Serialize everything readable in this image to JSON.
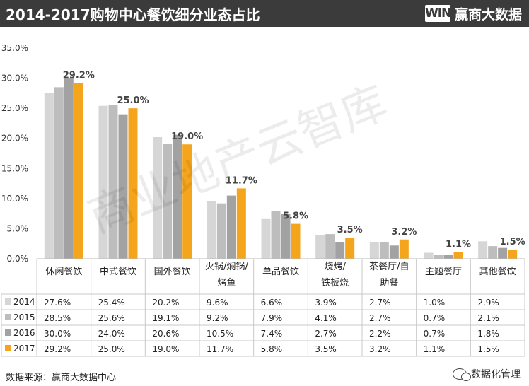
{
  "header": {
    "title": "2014-2017购物中心餐饮细分业态占比",
    "brand_logo": "WIN",
    "brand_name": "赢商大数据"
  },
  "watermark": "商业地产云智库",
  "source": "数据来源：赢商大数据中心",
  "wechat": {
    "icon": "wechat-icon",
    "account": "数据化管理"
  },
  "chart_data": {
    "type": "bar",
    "title": "2014-2017购物中心餐饮细分业态占比",
    "categories": [
      [
        "休闲餐饮"
      ],
      [
        "中式餐饮"
      ],
      [
        "国外餐饮"
      ],
      [
        "火锅/焖锅/",
        "烤鱼"
      ],
      [
        "单品餐饮"
      ],
      [
        "烧烤/",
        "铁板烧"
      ],
      [
        "茶餐厅/自",
        "助餐"
      ],
      [
        "主题餐厅"
      ],
      [
        "其他餐饮"
      ]
    ],
    "series": [
      {
        "name": "2014",
        "color": "#d6d6d6",
        "values": [
          27.6,
          25.4,
          20.2,
          9.6,
          6.6,
          3.9,
          2.7,
          1.0,
          2.9
        ],
        "labels": [
          "27.6%",
          "25.4%",
          "20.2%",
          "9.6%",
          "6.6%",
          "3.9%",
          "2.7%",
          "1.0%",
          "2.9%"
        ]
      },
      {
        "name": "2015",
        "color": "#bdbdbd",
        "values": [
          28.5,
          25.6,
          19.1,
          9.2,
          7.9,
          4.1,
          2.7,
          0.7,
          2.1
        ],
        "labels": [
          "28.5%",
          "25.6%",
          "19.1%",
          "9.2%",
          "7.9%",
          "4.1%",
          "2.7%",
          "0.7%",
          "2.1%"
        ]
      },
      {
        "name": "2016",
        "color": "#a2a2a2",
        "values": [
          30.0,
          24.0,
          20.6,
          10.5,
          7.4,
          2.7,
          2.2,
          0.7,
          1.8
        ],
        "labels": [
          "30.0%",
          "24.0%",
          "20.6%",
          "10.5%",
          "7.4%",
          "2.7%",
          "2.2%",
          "0.7%",
          "1.8%"
        ]
      },
      {
        "name": "2017",
        "color": "#f5a51b",
        "values": [
          29.2,
          25.0,
          19.0,
          11.7,
          5.8,
          3.5,
          3.2,
          1.1,
          1.5
        ],
        "labels": [
          "29.2%",
          "25.0%",
          "19.0%",
          "11.7%",
          "5.8%",
          "3.5%",
          "3.2%",
          "1.1%",
          "1.5%"
        ]
      }
    ],
    "data_labels_series": "2017",
    "ylim": [
      0,
      35
    ],
    "yticks": [
      0,
      5,
      10,
      15,
      20,
      25,
      30,
      35
    ],
    "ytick_labels": [
      "0.0%",
      "5.0%",
      "10.0%",
      "15.0%",
      "20.0%",
      "25.0%",
      "30.0%",
      "35.0%"
    ],
    "grid": false,
    "legend": "data-table"
  },
  "colors": {
    "header_bg": "#3b3b3b",
    "accent": "#f5a51b"
  }
}
